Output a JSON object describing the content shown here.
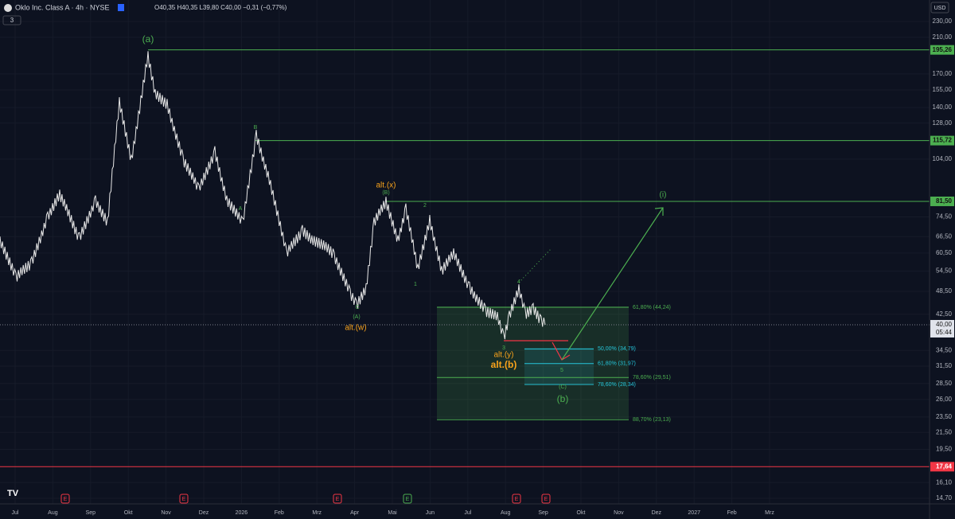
{
  "header": {
    "symbol": "Oklo Inc. Class A · 4h · NYSE",
    "ohlc": "O40,35 H40,35 L39,80 C40,00 −0,31 (−0,77%)",
    "indicator_count": "3",
    "currency": "USD"
  },
  "price_axis": {
    "scale": "log",
    "range": [
      14.7,
      230
    ],
    "ticks": [
      {
        "value": 230,
        "label": "230,00"
      },
      {
        "value": 210,
        "label": "210,00"
      },
      {
        "value": 170,
        "label": "170,00"
      },
      {
        "value": 155,
        "label": "155,00"
      },
      {
        "value": 140,
        "label": "140,00"
      },
      {
        "value": 128,
        "label": "128,00"
      },
      {
        "value": 104,
        "label": "104,00"
      },
      {
        "value": 74.5,
        "label": "74,50"
      },
      {
        "value": 66.5,
        "label": "66,50"
      },
      {
        "value": 60.5,
        "label": "60,50"
      },
      {
        "value": 54.5,
        "label": "54,50"
      },
      {
        "value": 48.5,
        "label": "48,50"
      },
      {
        "value": 42.5,
        "label": "42,50"
      },
      {
        "value": 34.5,
        "label": "34,50"
      },
      {
        "value": 31.5,
        "label": "31,50"
      },
      {
        "value": 28.5,
        "label": "28,50"
      },
      {
        "value": 26,
        "label": "26,00"
      },
      {
        "value": 23.5,
        "label": "23,50"
      },
      {
        "value": 21.5,
        "label": "21,50"
      },
      {
        "value": 19.5,
        "label": "19,50"
      },
      {
        "value": 16.1,
        "label": "16,10"
      },
      {
        "value": 14.7,
        "label": "14,70"
      }
    ]
  },
  "current_price": {
    "value": 40,
    "label": "40,00",
    "countdown": "05:44"
  },
  "levels": [
    {
      "value": 195.26,
      "label": "195,26",
      "color": "#4caf50"
    },
    {
      "value": 115.72,
      "label": "115,72",
      "color": "#4caf50"
    },
    {
      "value": 81.5,
      "label": "81,50",
      "color": "#4caf50"
    },
    {
      "value": 17.64,
      "label": "17,64",
      "color": "#f23645"
    }
  ],
  "fib_outer": [
    {
      "value": 44.24,
      "label": "61,80% (44,24)"
    },
    {
      "value": 29.51,
      "label": "78,60% (29,51)"
    },
    {
      "value": 23.13,
      "label": "88,70% (23,13)"
    }
  ],
  "fib_inner": [
    {
      "value": 34.79,
      "label": "50,00% (34,79)"
    },
    {
      "value": 31.97,
      "label": "61,80% (31,97)"
    },
    {
      "value": 28.34,
      "label": "78,60% (28,34)"
    }
  ],
  "time_axis": [
    "Jul",
    "Aug",
    "Sep",
    "Okt",
    "Nov",
    "Dez",
    "2026",
    "Feb",
    "Mrz",
    "Apr",
    "Mai",
    "Jun",
    "Jul",
    "Aug",
    "Sep",
    "Okt",
    "Nov",
    "Dez",
    "2027",
    "Feb",
    "Mrz"
  ],
  "events": [
    "E",
    "E",
    "E",
    "E",
    "E",
    "E"
  ],
  "wave_labels": {
    "a": "(a)",
    "B": "B",
    "A": "A",
    "alt_x": "alt.(x)",
    "B2": "(B)",
    "two": "2",
    "one": "1",
    "A2": "(A)",
    "C": "C",
    "alt_w": "alt.(w)",
    "four": "4",
    "three": "3",
    "alt_y": "alt.(y)",
    "alt_b": "alt.(b)",
    "five": "5",
    "C2": "(C)",
    "b": "(b)",
    "i": "(i)"
  }
}
